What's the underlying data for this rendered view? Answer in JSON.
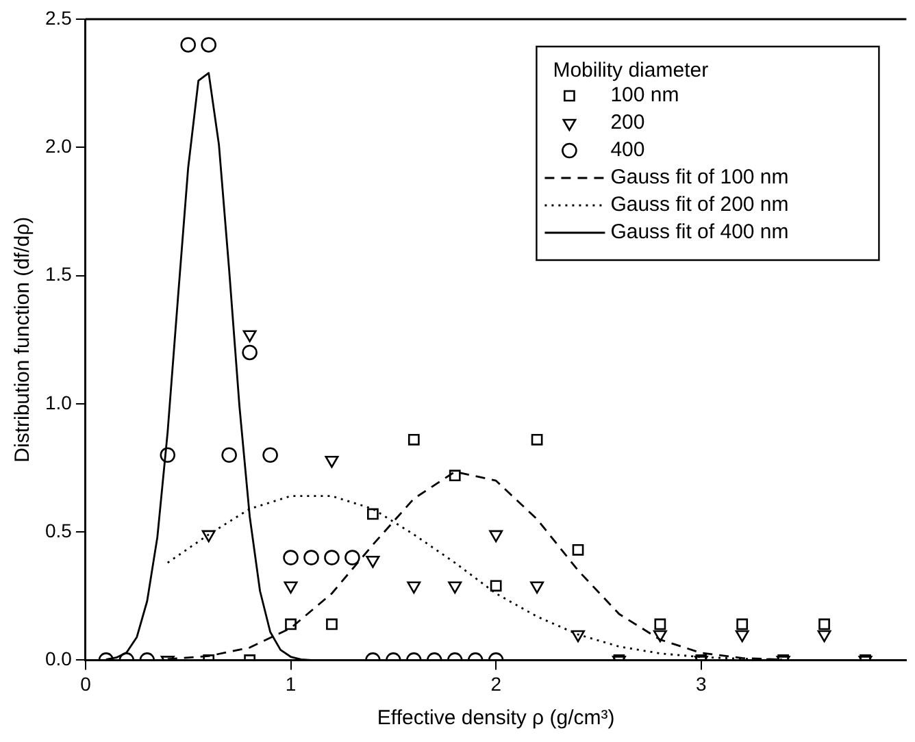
{
  "chart_data": {
    "type": "scatter",
    "xlabel": "Effective density ρ (g/cm³)",
    "ylabel": "Distribution function (df/dρ)",
    "legend_title": "Mobility diameter",
    "legend": "top right",
    "grid": false,
    "xlim": [
      0,
      4
    ],
    "xticks": [
      0,
      1,
      2,
      3
    ],
    "ylim": [
      0,
      2.5
    ],
    "yticks": [
      {
        "value": 0,
        "label": "0.0"
      },
      0.5,
      {
        "value": 1,
        "label": "1.0"
      },
      1.5,
      {
        "value": 2,
        "label": "2.0"
      },
      2.5
    ],
    "series": [
      {
        "name": "100 nm",
        "marker": "square",
        "color": "#000000",
        "x": [
          0.6,
          0.8,
          1.0,
          1.2,
          1.4,
          1.6,
          1.8,
          2.0,
          2.2,
          2.4,
          2.6,
          2.8,
          3.0,
          3.2,
          3.4,
          3.6,
          3.8
        ],
        "values": [
          0,
          0,
          0.14,
          0.14,
          0.57,
          0.86,
          0.72,
          0.29,
          0.86,
          0.43,
          0,
          0.14,
          0,
          0.14,
          0,
          0.14,
          0
        ]
      },
      {
        "name": "200",
        "marker": "triangle",
        "color": "#000000",
        "x": [
          0.4,
          0.6,
          0.8,
          1.0,
          1.2,
          1.4,
          1.6,
          1.8,
          2.0,
          2.2,
          2.4,
          2.6,
          2.8,
          3.0,
          3.2,
          3.4,
          3.6,
          3.8
        ],
        "values": [
          0,
          0.49,
          1.27,
          0.29,
          0.78,
          0.39,
          0.29,
          0.29,
          0.49,
          0.29,
          0.1,
          0,
          0.1,
          0,
          0.1,
          0,
          0.1,
          0
        ]
      },
      {
        "name": "400",
        "marker": "circle",
        "color": "#000000",
        "x": [
          0.1,
          0.2,
          0.3,
          0.4,
          0.5,
          0.6,
          0.7,
          0.8,
          0.9,
          1.0,
          1.1,
          1.2,
          1.3,
          1.4,
          1.5,
          1.6,
          1.7,
          1.8,
          1.9,
          2.0
        ],
        "values": [
          0,
          0,
          0,
          0.8,
          2.4,
          2.4,
          0.8,
          1.2,
          0.8,
          0.4,
          0.4,
          0.4,
          0.4,
          0,
          0,
          0,
          0,
          0,
          0,
          0
        ]
      },
      {
        "name": "Gauss fit of 100 nm",
        "type": "line",
        "marker": "none",
        "line_style": "dashed",
        "color": "#000000",
        "x": [
          0.4,
          0.6,
          0.8,
          1.0,
          1.2,
          1.4,
          1.6,
          1.8,
          2.0,
          2.2,
          2.4,
          2.6,
          2.8,
          3.0,
          3.2,
          3.4
        ],
        "values": [
          0.004,
          0.016,
          0.049,
          0.125,
          0.26,
          0.45,
          0.63,
          0.735,
          0.7,
          0.55,
          0.35,
          0.18,
          0.08,
          0.028,
          0.008,
          0.002
        ]
      },
      {
        "name": "Gauss fit of 200 nm",
        "type": "line",
        "marker": "none",
        "line_style": "dotted",
        "color": "#000000",
        "x": [
          0.4,
          0.6,
          0.8,
          1.0,
          1.2,
          1.4,
          1.6,
          1.8,
          2.0,
          2.2,
          2.4,
          2.6,
          2.8,
          3.0,
          3.2,
          3.4
        ],
        "values": [
          0.38,
          0.49,
          0.59,
          0.64,
          0.64,
          0.59,
          0.49,
          0.38,
          0.26,
          0.17,
          0.1,
          0.053,
          0.026,
          0.012,
          0.005,
          0.002
        ]
      },
      {
        "name": "Gauss fit of 400 nm",
        "type": "line",
        "marker": "none",
        "line_style": "solid",
        "color": "#000000",
        "x": [
          0.1,
          0.15,
          0.2,
          0.25,
          0.3,
          0.35,
          0.4,
          0.45,
          0.5,
          0.55,
          0.6,
          0.65,
          0.7,
          0.75,
          0.8,
          0.85,
          0.9,
          0.95,
          1.0,
          1.05,
          1.1
        ],
        "values": [
          0.003,
          0.01,
          0.03,
          0.09,
          0.23,
          0.48,
          0.89,
          1.41,
          1.92,
          2.26,
          2.29,
          2.01,
          1.52,
          0.99,
          0.56,
          0.27,
          0.11,
          0.04,
          0.013,
          0.003,
          0
        ]
      }
    ]
  }
}
